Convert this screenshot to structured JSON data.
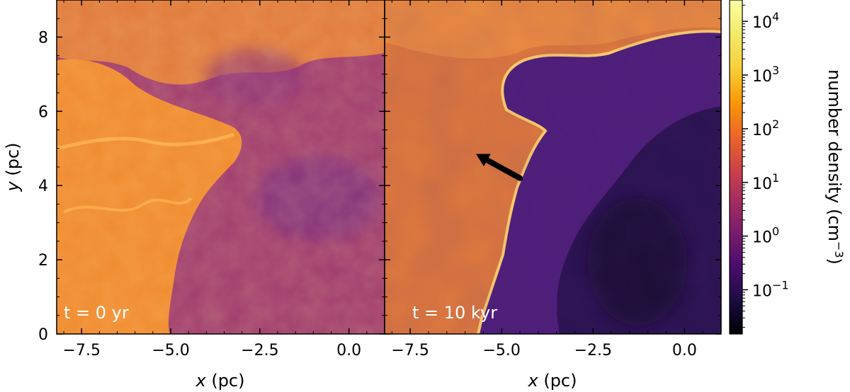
{
  "chart_data": {
    "type": "heatmap",
    "panels": [
      {
        "annotation": "t = 0 yr",
        "xlabel_var": "x",
        "xlabel_unit": " (pc)",
        "ylabel_var": "y",
        "ylabel_unit": " (pc)",
        "xlim": [
          -8.2,
          1.0
        ],
        "ylim": [
          0,
          9
        ],
        "xticks": [
          -7.5,
          -5.0,
          -2.5,
          0.0
        ],
        "xtick_labels": [
          "−7.5",
          "−5.0",
          "−2.5",
          "0.0"
        ],
        "yticks": [
          0,
          2,
          4,
          6,
          8
        ],
        "ytick_labels": [
          "0",
          "2",
          "4",
          "6",
          "8"
        ]
      },
      {
        "annotation": "t = 10 kyr",
        "xlabel_var": "x",
        "xlabel_unit": " (pc)",
        "xlim": [
          -8.2,
          1.0
        ],
        "ylim": [
          0,
          9
        ],
        "xticks": [
          -7.5,
          -5.0,
          -2.5,
          0.0
        ],
        "xtick_labels": [
          "−7.5",
          "−5.0",
          "−2.5",
          "0.0"
        ],
        "arrow": {
          "from": [
            -4.5,
            4.2
          ],
          "to": [
            -5.7,
            4.85
          ]
        }
      }
    ],
    "colorbar": {
      "label_text": "number density (cm",
      "label_exp": "−3",
      "label_close": ")",
      "scale": "log",
      "range": [
        0.015,
        25000
      ],
      "ticks": [
        {
          "value": 0.1,
          "base": "10",
          "exp": "−1"
        },
        {
          "value": 1,
          "base": "10",
          "exp": "0"
        },
        {
          "value": 10,
          "base": "10",
          "exp": "1"
        },
        {
          "value": 100,
          "base": "10",
          "exp": "2"
        },
        {
          "value": 1000,
          "base": "10",
          "exp": "3"
        },
        {
          "value": 10000,
          "base": "10",
          "exp": "4"
        }
      ],
      "colormap": "inferno"
    },
    "colors": {
      "dense": "#f08a2e",
      "medium": "#b8446a",
      "diffuse": "#6c2b82",
      "void": "#1c0f3c"
    }
  }
}
